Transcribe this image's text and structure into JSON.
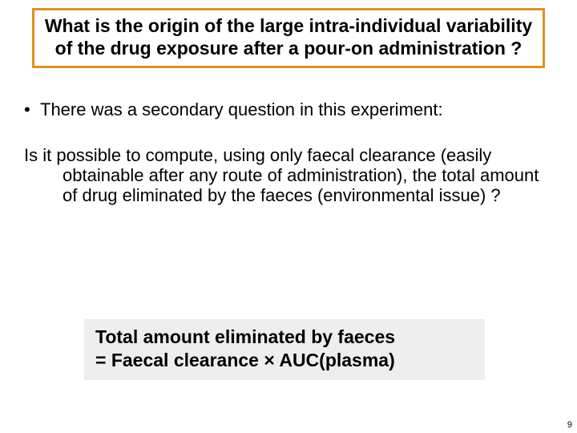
{
  "colors": {
    "title_border": "#e09020",
    "equation_bg": "#eeeeee",
    "text": "#000000",
    "background": "#ffffff"
  },
  "title": "What is the origin of the large intra-individual variability of the drug exposure after a pour-on administration ?",
  "bullet": "There was a secondary question in this experiment:",
  "paragraph": "Is it possible to compute, using only faecal clearance (easily obtainable after any route of administration), the total amount of drug eliminated by the faeces (environmental issue) ?",
  "equation_line1": "Total amount eliminated by faeces",
  "equation_line2_prefix": "= Faecal clearance ",
  "equation_multiply_symbol": "×",
  "equation_line2_suffix": " AUC(plasma)",
  "page_number": "9"
}
